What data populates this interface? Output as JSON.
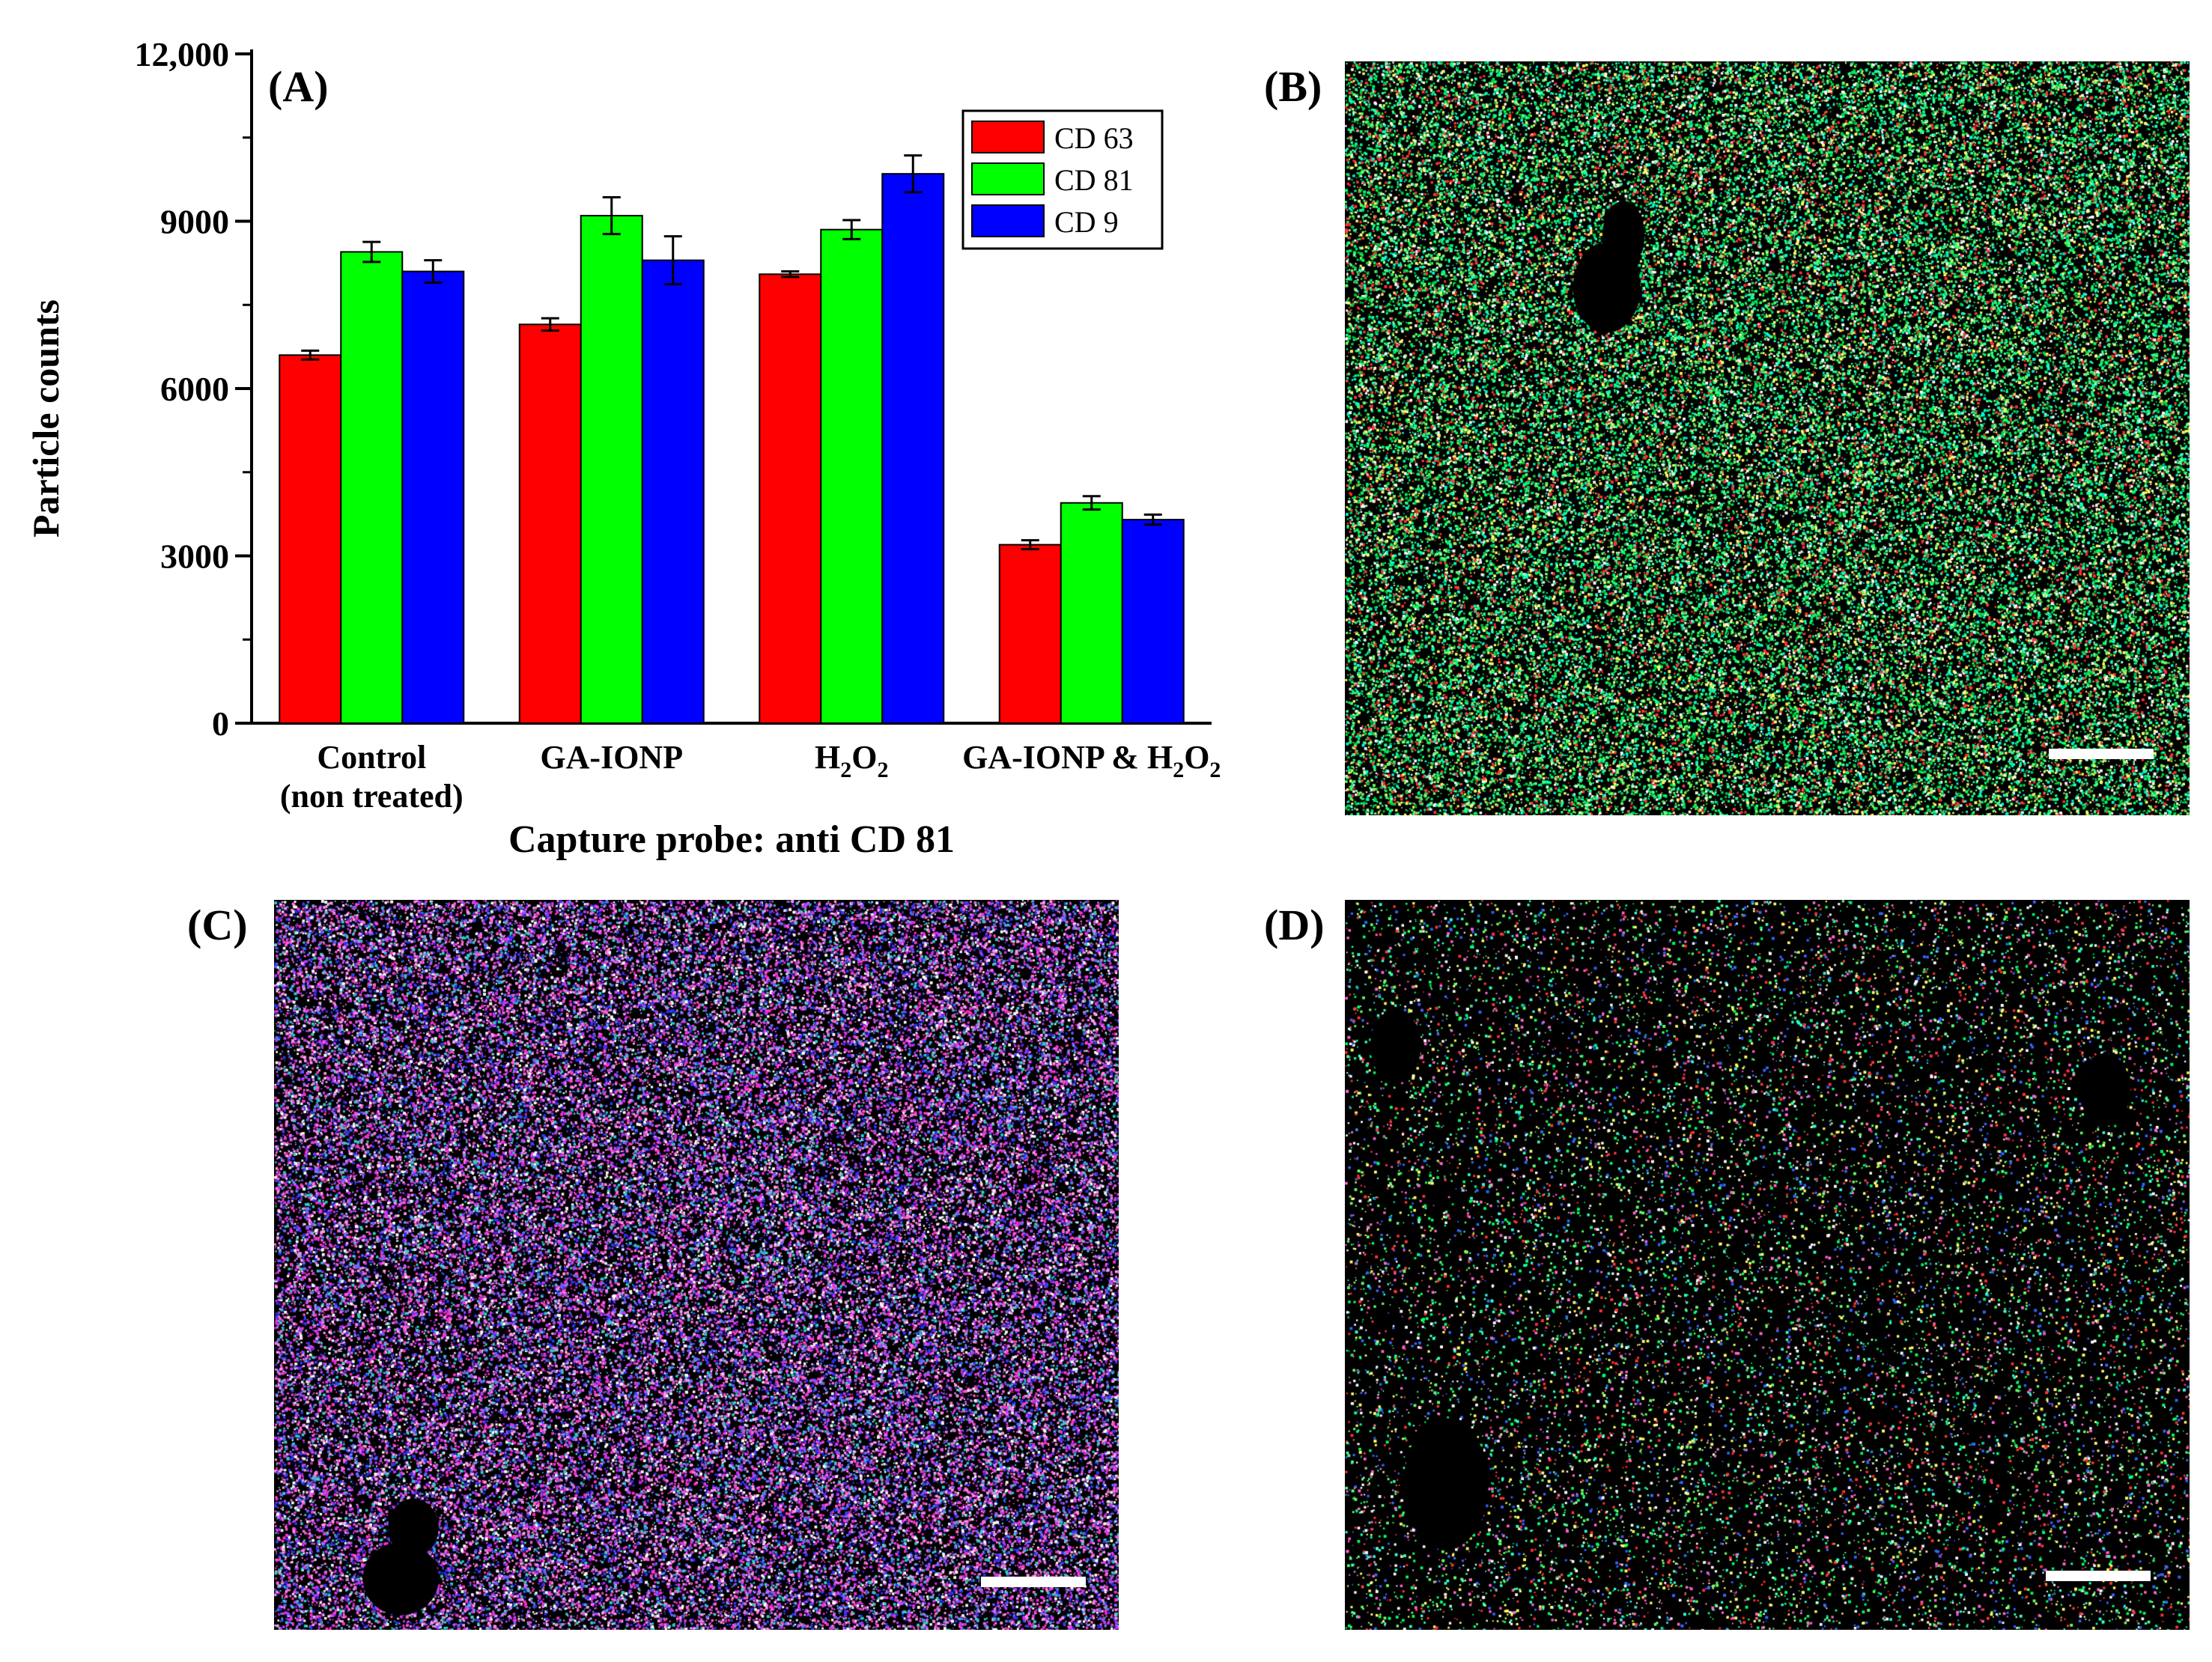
{
  "panel_labels": {
    "a": "(A)",
    "b": "(B)",
    "c": "(C)",
    "d": "(D)"
  },
  "chart_data": {
    "type": "bar",
    "xlabel": "Capture probe: anti CD 81",
    "ylabel": "Particle counts",
    "ylim": [
      0,
      12000
    ],
    "yticks": [
      {
        "value": 0,
        "label": "0"
      },
      {
        "value": 3000,
        "label": "3000"
      },
      {
        "value": 6000,
        "label": "6000"
      },
      {
        "value": 9000,
        "label": "9000"
      },
      {
        "value": 12000,
        "label": "12,000"
      }
    ],
    "categories": [
      {
        "line1": "Control",
        "line2": "(non treated)"
      },
      {
        "line1": "GA-IONP",
        "line2": ""
      },
      {
        "line1": "H",
        "sub1": "2",
        "mid": "O",
        "sub2": "2",
        "tail": ""
      },
      {
        "line1": "GA-IONP & H",
        "sub1": "2",
        "mid": "O",
        "sub2": "2",
        "tail": ""
      }
    ],
    "series": [
      {
        "name": "CD 63",
        "color": "#ff0000",
        "values": [
          6600,
          7150,
          8050,
          3200
        ],
        "errors": [
          80,
          110,
          50,
          80
        ]
      },
      {
        "name": "CD 81",
        "color": "#00ff00",
        "values": [
          8450,
          9100,
          8850,
          3950
        ],
        "errors": [
          180,
          330,
          170,
          120
        ]
      },
      {
        "name": "CD 9",
        "color": "#0000ff",
        "values": [
          8100,
          8300,
          9850,
          3650
        ],
        "errors": [
          200,
          430,
          330,
          90
        ]
      }
    ],
    "legend_position": "top-right",
    "grid": false
  },
  "micrographs": {
    "b": {
      "palette": [
        "#00ff66",
        "#00cc44",
        "#33ff99",
        "#00ffcc",
        "#66ff66",
        "#ffffff",
        "#ffff66",
        "#ff3333"
      ],
      "density": 0.78
    },
    "c": {
      "palette": [
        "#ff33cc",
        "#ff66dd",
        "#ffffff",
        "#3333ff",
        "#33cccc",
        "#cc33ff",
        "#ff99ee",
        "#6666ff"
      ],
      "density": 0.9
    },
    "d": {
      "palette": [
        "#00ff66",
        "#33ffcc",
        "#ff3333",
        "#ffff66",
        "#3366ff",
        "#ffffff",
        "#ff66cc",
        "#66ff66"
      ],
      "density": 0.2
    }
  }
}
